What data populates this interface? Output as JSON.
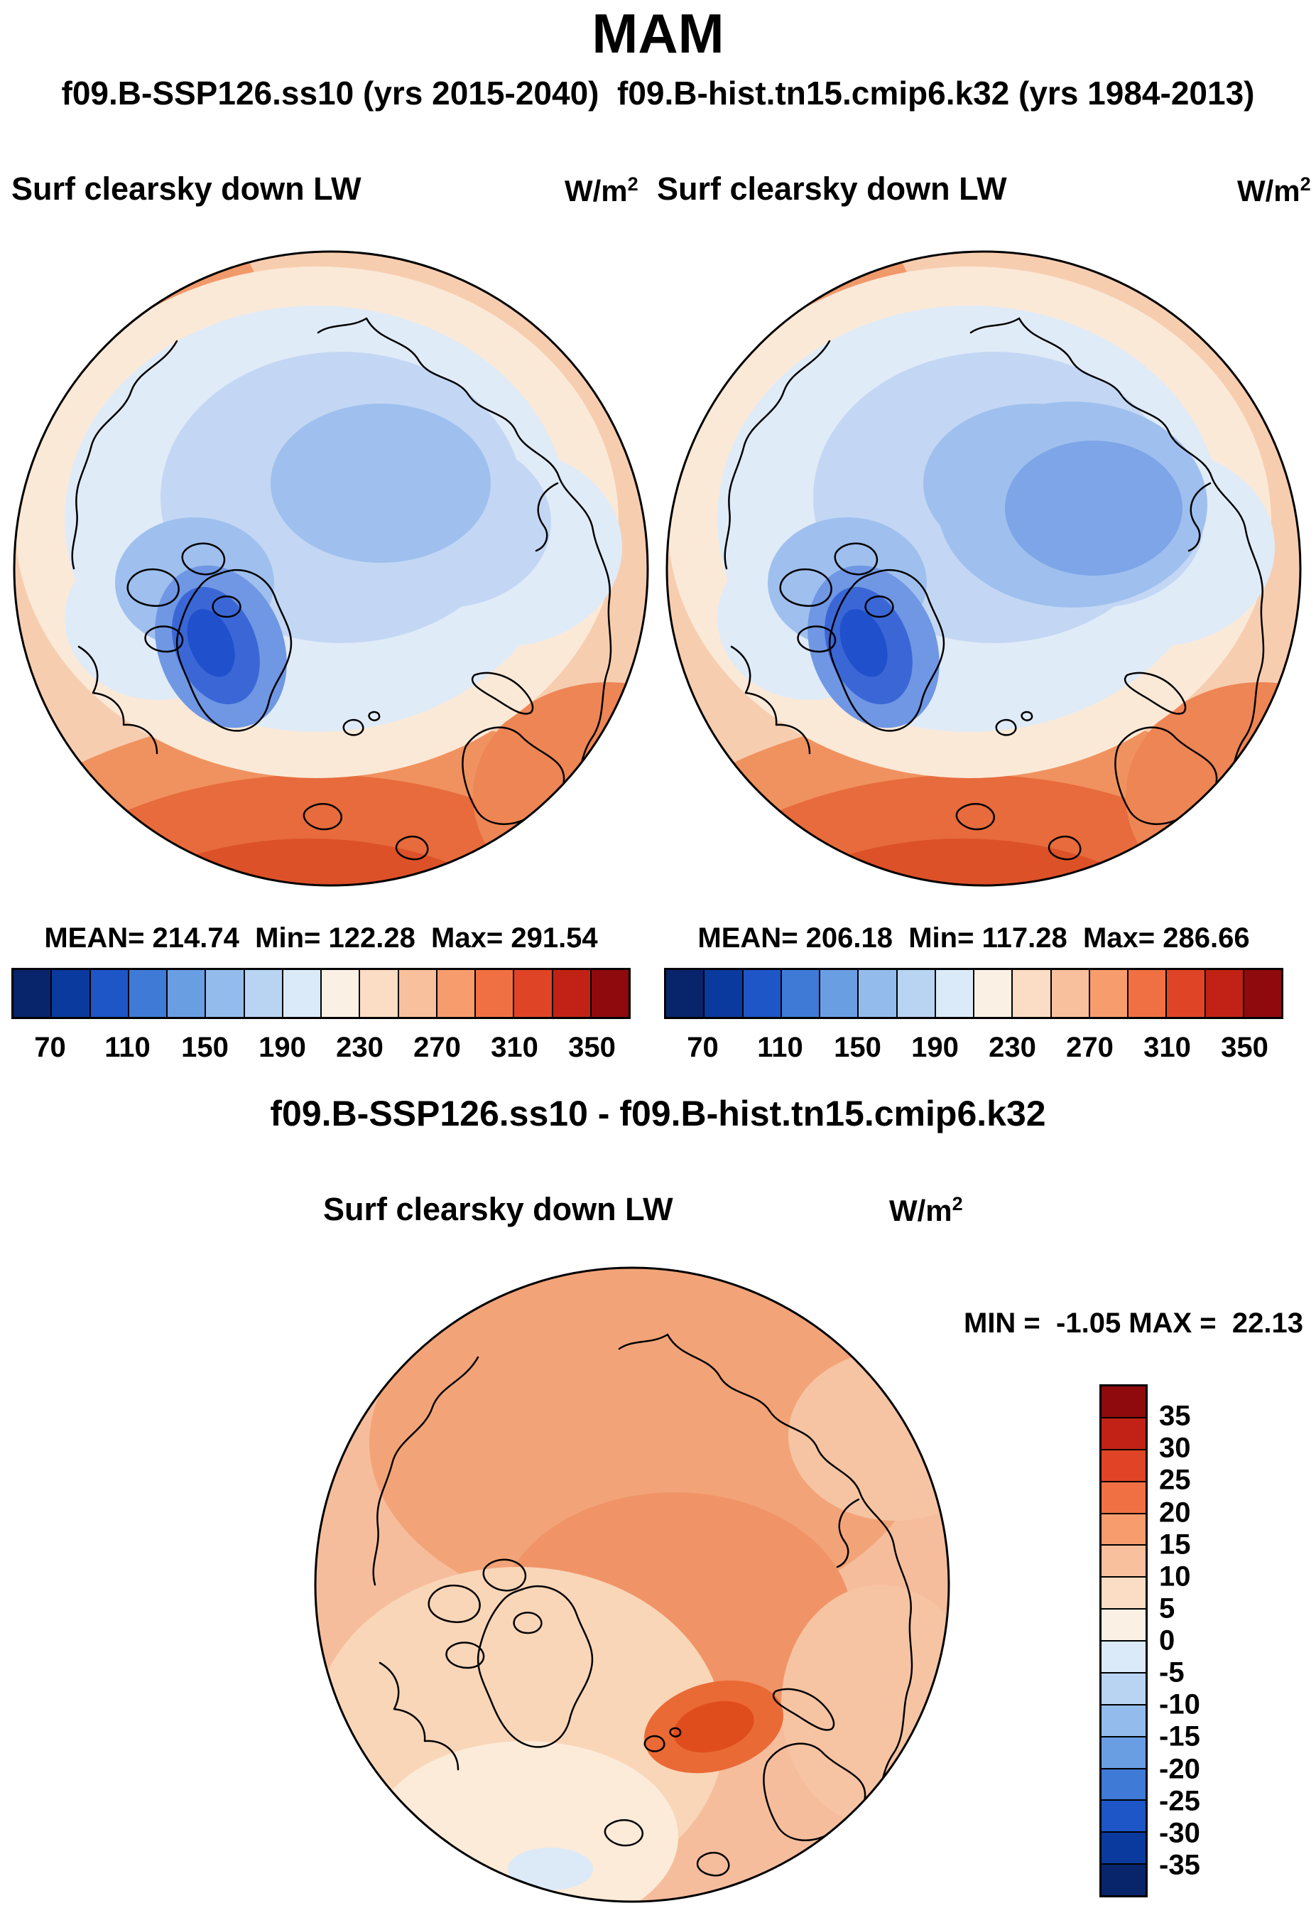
{
  "title": "MAM",
  "subtitle": "f09.B-SSP126.ss10 (yrs 2015-2040)  f09.B-hist.tn15.cmip6.k32 (yrs 1984-2013)",
  "units_base": "W/m",
  "units_exp": "2",
  "panels": [
    {
      "label": "Surf clearsky down LW",
      "stats": "MEAN= 214.74  Min= 122.28  Max= 291.54"
    },
    {
      "label": "Surf clearsky down LW",
      "stats": "MEAN= 206.18  Min= 117.28  Max= 286.66"
    }
  ],
  "hbar_ticks": [
    "70",
    "110",
    "150",
    "190",
    "230",
    "270",
    "310",
    "350"
  ],
  "diff": {
    "title": "f09.B-SSP126.ss10 - f09.B-hist.tn15.cmip6.k32",
    "label": "Surf clearsky down LW",
    "minmax": "MIN =  -1.05 MAX =  22.13"
  },
  "vbar_ticks": [
    "35",
    "30",
    "25",
    "20",
    "15",
    "10",
    "5",
    "0",
    "-5",
    "-10",
    "-15",
    "-20",
    "-25",
    "-30",
    "-35"
  ],
  "colorbar_palette_blue_to_red": [
    "#08246b",
    "#0b3a9e",
    "#1e56c8",
    "#3f7ad6",
    "#6a9ee3",
    "#93bcec",
    "#b8d4f2",
    "#daeaf8",
    "#faf0e4",
    "#fbdcc4",
    "#f9c09d",
    "#f79c6d",
    "#f07044",
    "#e04427",
    "#c22215",
    "#8f0a0d"
  ],
  "colors": {
    "text": "#000000",
    "background": "#ffffff"
  },
  "chart_data": [
    {
      "type": "heatmap",
      "subtype": "north-polar-stereographic-map",
      "season": "MAM",
      "title": "Surf clearsky down LW — f09.B-SSP126.ss10 (yrs 2015-2040)",
      "units": "W/m^2",
      "stats": {
        "mean": 214.74,
        "min": 122.28,
        "max": 291.54
      },
      "colorbar": {
        "orientation": "horizontal",
        "tick_levels": [
          70,
          110,
          150,
          190,
          230,
          270,
          310,
          350
        ],
        "segment_step": 20,
        "range": [
          70,
          350
        ],
        "extend": "both"
      }
    },
    {
      "type": "heatmap",
      "subtype": "north-polar-stereographic-map",
      "season": "MAM",
      "title": "Surf clearsky down LW — f09.B-hist.tn15.cmip6.k32 (yrs 1984-2013)",
      "units": "W/m^2",
      "stats": {
        "mean": 206.18,
        "min": 117.28,
        "max": 286.66
      },
      "colorbar": {
        "orientation": "horizontal",
        "tick_levels": [
          70,
          110,
          150,
          190,
          230,
          270,
          310,
          350
        ],
        "segment_step": 20,
        "range": [
          70,
          350
        ],
        "extend": "both"
      }
    },
    {
      "type": "heatmap",
      "subtype": "north-polar-stereographic-map",
      "season": "MAM",
      "title": "Surf clearsky down LW — f09.B-SSP126.ss10 - f09.B-hist.tn15.cmip6.k32",
      "units": "W/m^2",
      "stats": {
        "min": -1.05,
        "max": 22.13
      },
      "colorbar": {
        "orientation": "vertical",
        "tick_levels": [
          35,
          30,
          25,
          20,
          15,
          10,
          5,
          0,
          -5,
          -10,
          -15,
          -20,
          -25,
          -30,
          -35
        ],
        "segment_step": 5,
        "range": [
          -35,
          35
        ],
        "extend": "both"
      }
    }
  ]
}
